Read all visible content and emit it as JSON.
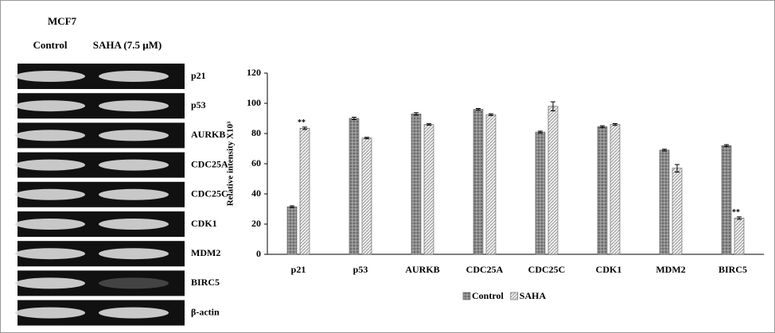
{
  "blot": {
    "cell_line": "MCF7",
    "lanes": [
      "Control",
      "SAHA (7.5 μM)"
    ],
    "proteins": [
      "p21",
      "p53",
      "AURKB",
      "CDC25A",
      "CDC25C",
      "CDK1",
      "MDM2",
      "BIRC5",
      "β-actin"
    ]
  },
  "chart_data": {
    "type": "bar",
    "y_label": "Relative intensity X10³",
    "categories": [
      "p21",
      "p53",
      "AURKB",
      "CDC25A",
      "CDC25C",
      "CDK1",
      "MDM2",
      "BIRC5"
    ],
    "series": [
      {
        "name": "Control",
        "color": "#8c8c8c",
        "values": [
          31.5,
          90,
          93,
          96,
          81,
          84.5,
          69,
          72
        ],
        "errors": [
          0.6,
          0.8,
          0.8,
          0.6,
          0.6,
          0.6,
          0.6,
          0.6
        ]
      },
      {
        "name": "SAHA",
        "color": "#e6e6e6",
        "values": [
          83.5,
          77,
          86,
          92.5,
          98,
          86,
          57,
          24
        ],
        "errors": [
          0.8,
          0.5,
          0.5,
          0.6,
          3,
          0.6,
          2.5,
          0.8
        ]
      }
    ],
    "annotations": [
      "**",
      "**"
    ],
    "ylim": [
      0,
      120
    ],
    "yticks": [
      0,
      20,
      40,
      60,
      80,
      100,
      120
    ],
    "legend": "bottom"
  }
}
